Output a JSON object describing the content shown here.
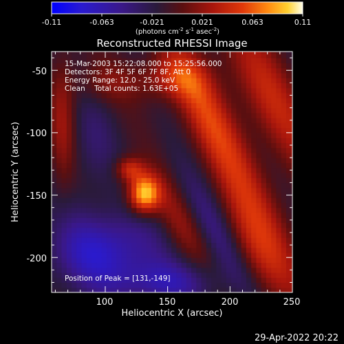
{
  "colors": {
    "background": "#000000",
    "foreground": "#ffffff",
    "colormap": [
      "#0000ff",
      "#3a1aa0",
      "#2c1e58",
      "#2a1a3a",
      "#701010",
      "#b51a0a",
      "#e8400a",
      "#ff8a10",
      "#ffd030",
      "#ffffe8"
    ]
  },
  "colorbar": {
    "ticks": [
      "-0.11",
      "-0.063",
      "-0.021",
      "0.021",
      "0.063",
      "0.11"
    ],
    "units_prefix": "(photons cm",
    "units_exp1": "-2",
    "units_mid": " s",
    "units_exp2": "-1",
    "units_mid2": " asec",
    "units_exp3": "-2",
    "units_suffix": ")"
  },
  "info": {
    "time_range": "15-Mar-2003 15:22:08.000 to 15:25:56.000",
    "detectors": "Detectors: 3F 4F 5F 6F 7F 8F, Att 0",
    "energy": "Energy Range: 12.0 - 25.0 keV",
    "clean": "Clean    Total counts: 1.63E+05",
    "peak": "Position of Peak = [131,-149]"
  },
  "footer": {
    "date": "29-Apr-2022 20:22"
  },
  "chart_data": {
    "type": "heatmap",
    "title": "Reconstructed RHESSI Image",
    "xlabel": "Heliocentric X (arcsec)",
    "ylabel": "Heliocentric Y (arcsec)",
    "xlim": [
      57,
      250
    ],
    "ylim": [
      -228,
      -35
    ],
    "x_ticks": [
      100,
      150,
      200,
      250
    ],
    "y_ticks": [
      -50,
      -100,
      -150,
      -200
    ],
    "color_range": [
      -0.11,
      0.11
    ],
    "peak": {
      "x": 131,
      "y": -149
    },
    "grid_step_arcsec": 4,
    "features": [
      {
        "x": 131,
        "y": -149,
        "sx": 9,
        "sy": 11,
        "angle": 0,
        "amp": 0.11
      },
      {
        "x": 119,
        "y": -129,
        "sx": 8,
        "sy": 7,
        "angle": 0,
        "amp": 0.055
      },
      {
        "x": 232,
        "y": -72,
        "sx": 16,
        "sy": 55,
        "angle": -28,
        "amp": 0.05
      },
      {
        "x": 205,
        "y": -135,
        "sx": 14,
        "sy": 70,
        "angle": -28,
        "amp": 0.048
      },
      {
        "x": 152,
        "y": -57,
        "sx": 20,
        "sy": 12,
        "angle": 0,
        "amp": 0.038
      },
      {
        "x": 178,
        "y": -74,
        "sx": 12,
        "sy": 40,
        "angle": -28,
        "amp": 0.032
      },
      {
        "x": 222,
        "y": -196,
        "sx": 14,
        "sy": 32,
        "angle": -28,
        "amp": 0.035
      },
      {
        "x": 158,
        "y": -170,
        "sx": 10,
        "sy": 28,
        "angle": -28,
        "amp": 0.032
      },
      {
        "x": 66,
        "y": -90,
        "sx": 7,
        "sy": 40,
        "angle": 0,
        "amp": 0.034
      },
      {
        "x": 100,
        "y": -60,
        "sx": 18,
        "sy": 12,
        "angle": 0,
        "amp": 0.025
      },
      {
        "x": 98,
        "y": -195,
        "sx": 30,
        "sy": 22,
        "angle": 0,
        "amp": -0.065
      },
      {
        "x": 150,
        "y": -220,
        "sx": 28,
        "sy": 12,
        "angle": 0,
        "amp": -0.045
      },
      {
        "x": 188,
        "y": -178,
        "sx": 9,
        "sy": 40,
        "angle": -28,
        "amp": -0.035
      },
      {
        "x": 90,
        "y": -110,
        "sx": 12,
        "sy": 28,
        "angle": 0,
        "amp": -0.02
      }
    ]
  }
}
